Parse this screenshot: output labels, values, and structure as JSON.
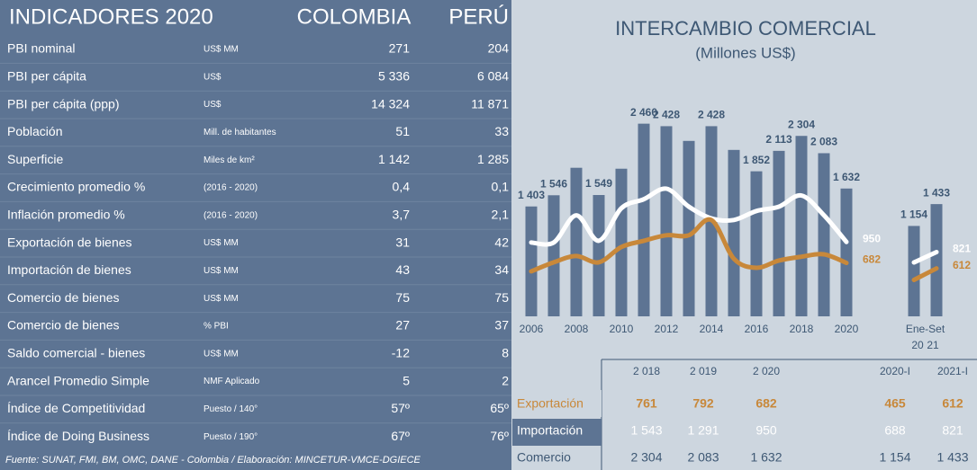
{
  "indicators": {
    "title": "INDICADORES 2020",
    "col1": "COLOMBIA",
    "col2": "PERÚ",
    "rows": [
      [
        "PBI nominal",
        "US$ MM",
        "271",
        "204"
      ],
      [
        "PBI per cápita",
        "US$",
        "5 336",
        "6 084"
      ],
      [
        "PBI per cápita (ppp)",
        "US$",
        "14 324",
        "11 871"
      ],
      [
        "Población",
        "Mill. de habitantes",
        "51",
        "33"
      ],
      [
        "Superficie",
        "Miles de km²",
        "1 142",
        "1 285"
      ],
      [
        "Crecimiento promedio %",
        "(2016 - 2020)",
        "0,4",
        "0,1"
      ],
      [
        "Inflación promedio %",
        "(2016 - 2020)",
        "3,7",
        "2,1"
      ],
      [
        "Exportación de bienes",
        "US$ MM",
        "31",
        "42"
      ],
      [
        "Importación de bienes",
        "US$ MM",
        "43",
        "34"
      ],
      [
        "Comercio de bienes",
        "US$ MM",
        "75",
        "75"
      ],
      [
        "Comercio de bienes",
        "% PBI",
        "27",
        "37"
      ],
      [
        "Saldo comercial - bienes",
        "US$ MM",
        "-12",
        "8"
      ],
      [
        "Arancel Promedio Simple",
        "NMF Aplicado",
        "5",
        "2"
      ],
      [
        "Índice de Competitividad",
        "Puesto / 140°",
        "57º",
        "65º"
      ],
      [
        "Índice de Doing Business",
        "Puesto / 190°",
        "67º",
        "76º"
      ]
    ],
    "source": "Fuente: SUNAT, FMI, BM, OMC, DANE - Colombia / Elaboración: MINCETUR-VMCE-DGIECE"
  },
  "chart_data": {
    "type": "bar",
    "title": "INTERCAMBIO COMERCIAL",
    "subtitle": "(Millones US$)",
    "categories": [
      "2006",
      null,
      "2008",
      null,
      "2010",
      null,
      "2012",
      null,
      "2014",
      null,
      "2016",
      null,
      "2018",
      null,
      "2020",
      "20",
      "21"
    ],
    "group_label": "Ene-Set",
    "ylim": [
      0,
      2800
    ],
    "bars": {
      "color": "#5d7493",
      "values": [
        1403,
        1546,
        1897,
        1549,
        1885,
        2460,
        2428,
        2240,
        2428,
        2125,
        1852,
        2113,
        2304,
        2083,
        1632,
        1154,
        1433
      ],
      "value_labels": [
        "1 403",
        "1 546",
        null,
        "1 549",
        null,
        "2 460",
        "2 428",
        null,
        "2 428",
        null,
        "1 852",
        "2 113",
        "2 304",
        "2 083",
        "1 632",
        "1 154",
        "1 433"
      ]
    },
    "series": [
      {
        "name": "Importación",
        "color": "#ffffff",
        "values": [
          943,
          943,
          1290,
          965,
          1380,
          1495,
          1630,
          1400,
          1250,
          1230,
          1345,
          1400,
          1543,
          1291,
          950,
          688,
          821
        ],
        "value_labels": [
          null,
          null,
          null,
          null,
          null,
          null,
          null,
          null,
          null,
          null,
          null,
          null,
          null,
          null,
          "950",
          null,
          "821"
        ]
      },
      {
        "name": "Exportación",
        "color": "#c8883a",
        "values": [
          575,
          690,
          770,
          690,
          885,
          965,
          1035,
          1035,
          1230,
          735,
          620,
          712,
          761,
          792,
          682,
          465,
          612
        ],
        "value_labels": [
          null,
          null,
          null,
          null,
          null,
          null,
          null,
          null,
          null,
          null,
          null,
          null,
          null,
          null,
          "682",
          null,
          "612"
        ]
      }
    ]
  },
  "trade_table": {
    "columns": [
      "2 018",
      "2 019",
      "2 020",
      "2020-I",
      "2021-I"
    ],
    "rows": [
      {
        "label": "Exportación",
        "cells": [
          "761",
          "792",
          "682",
          "465",
          "612"
        ]
      },
      {
        "label": "Importación",
        "cells": [
          "1 543",
          "1 291",
          "950",
          "688",
          "821"
        ]
      },
      {
        "label": "Comercio",
        "cells": [
          "2 304",
          "2 083",
          "1 632",
          "1 154",
          "1 433"
        ]
      }
    ]
  }
}
